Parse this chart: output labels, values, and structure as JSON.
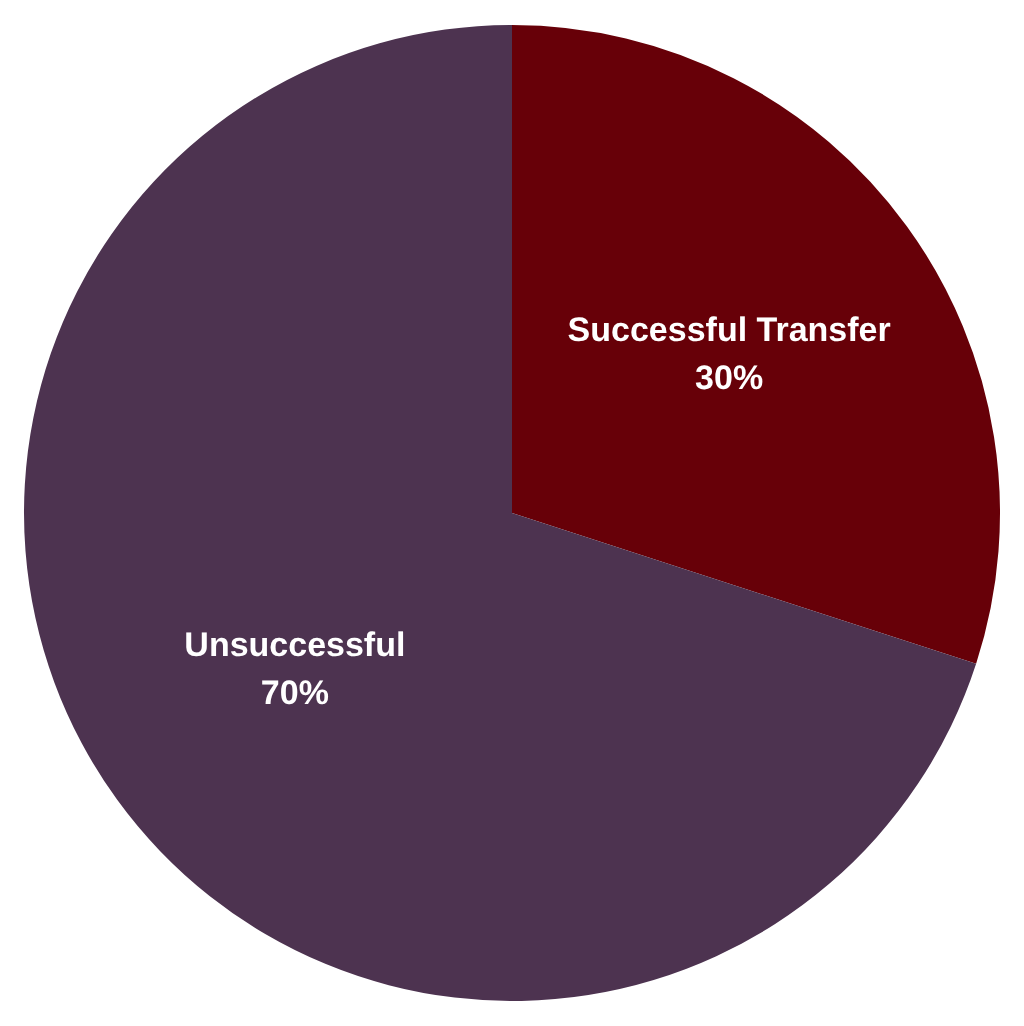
{
  "chart_data": {
    "type": "pie",
    "categories": [
      "Successful Transfer",
      "Unsuccessful"
    ],
    "values": [
      30,
      70
    ],
    "colors": [
      "#670008",
      "#4d3350"
    ],
    "value_labels": [
      "30%",
      "70%"
    ],
    "legend": false
  }
}
